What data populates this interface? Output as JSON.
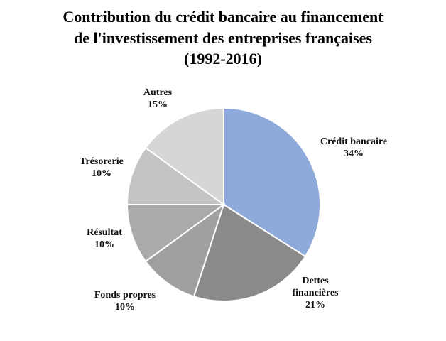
{
  "chart_data": {
    "type": "pie",
    "title_lines": [
      "Contribution du crédit bancaire au financement",
      "de l'investissement des entreprises françaises",
      "(1992-2016)"
    ],
    "slices": [
      {
        "label_lines": [
          "Crédit bancaire"
        ],
        "value_label": "34%",
        "value": 34,
        "color": "#8eaadb"
      },
      {
        "label_lines": [
          "Dettes",
          "financières"
        ],
        "value_label": "21%",
        "value": 21,
        "color": "#8a8a8a"
      },
      {
        "label_lines": [
          "Fonds propres"
        ],
        "value_label": "10%",
        "value": 10,
        "color": "#a0a0a0"
      },
      {
        "label_lines": [
          "Résultat"
        ],
        "value_label": "10%",
        "value": 10,
        "color": "#aaaaaa"
      },
      {
        "label_lines": [
          "Trésorerie"
        ],
        "value_label": "10%",
        "value": 10,
        "color": "#c4c4c4"
      },
      {
        "label_lines": [
          "Autres"
        ],
        "value_label": "15%",
        "value": 15,
        "color": "#d6d6d6"
      }
    ]
  }
}
